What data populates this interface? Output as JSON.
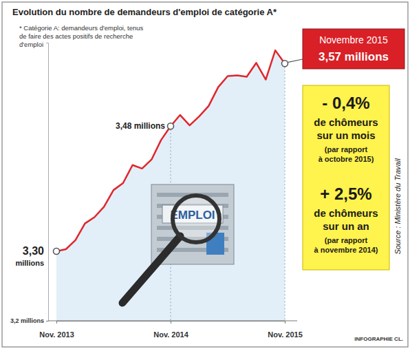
{
  "chart_data": {
    "type": "line",
    "title": "Evolution du nombre de demandeurs d'emploi de catégorie A*",
    "subtitle": "* Catégorie A: demandeurs d'emploi, tenus de faire des actes positifs de recherche d'emploi",
    "categories": [
      "Nov. 2013",
      null,
      null,
      null,
      null,
      null,
      null,
      null,
      null,
      null,
      null,
      null,
      "Nov. 2014",
      null,
      null,
      null,
      null,
      null,
      null,
      null,
      null,
      null,
      null,
      null,
      "Nov. 2015"
    ],
    "series": [
      {
        "name": "Demandeurs d'emploi de catégorie A",
        "color": "#e0262b",
        "marker": "circle",
        "values": [
          3.3,
          3.303,
          3.316,
          3.34,
          3.349,
          3.364,
          3.388,
          3.398,
          3.424,
          3.419,
          3.432,
          3.46,
          3.48,
          3.496,
          3.481,
          3.494,
          3.509,
          3.536,
          3.552,
          3.553,
          3.551,
          3.571,
          3.547,
          3.589,
          3.57
        ],
        "value_labels": [
          "3,30 millions",
          null,
          null,
          null,
          null,
          null,
          null,
          null,
          null,
          null,
          null,
          null,
          "3,48 millions",
          null,
          null,
          null,
          null,
          null,
          null,
          null,
          null,
          null,
          null,
          null,
          "3,57 millions"
        ]
      }
    ],
    "ylim": [
      3.2,
      3.6
    ],
    "yticks": [
      {
        "value": 3.2,
        "label": "3,2 millions"
      }
    ],
    "grid": false,
    "annotations": [
      "Novembre 2015",
      "- 0,4%",
      "de chômeurs",
      "sur un mois",
      "(par rapport",
      "à octobre 2015)",
      "+ 2,5%",
      "de chômeurs",
      "sur un an",
      "(par rapport",
      "à novembre 2014)"
    ],
    "illustration": "EMPLOI",
    "source": "Source : Ministère du Travail",
    "credit": "INFOGRAPHIE CL."
  }
}
